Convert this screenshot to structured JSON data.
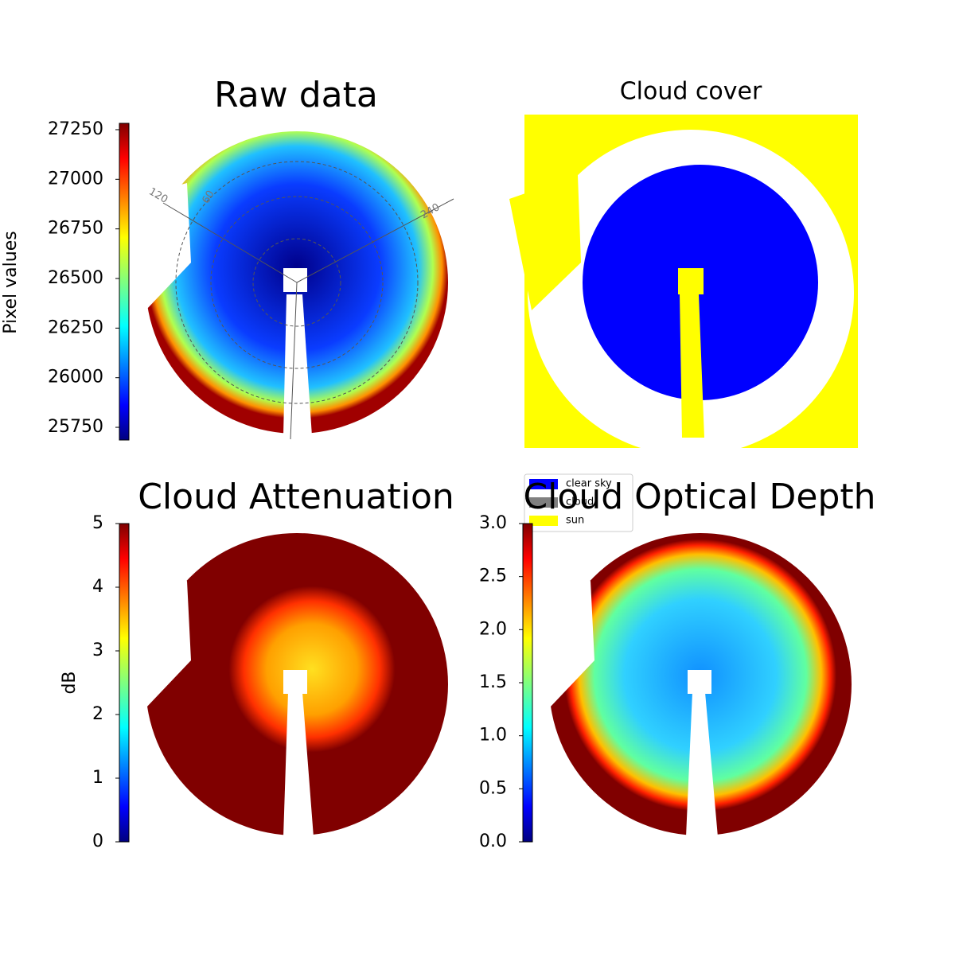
{
  "chart_data": [
    {
      "type": "image",
      "title": "Raw data",
      "colorbar": {
        "label": "Pixel values",
        "ylim": [
          25686,
          27282
        ],
        "yticks": [
          25750,
          26000,
          26250,
          26500,
          26750,
          27000,
          27250
        ]
      },
      "annotations": [
        "120",
        "60",
        "240"
      ]
    },
    {
      "type": "image",
      "title": "Cloud cover",
      "series": [
        {
          "name": "clear sky",
          "color": "#0000ff"
        },
        {
          "name": "cloud",
          "color": "#808080"
        },
        {
          "name": "sun",
          "color": "#ffff00"
        }
      ]
    },
    {
      "type": "image",
      "title": "Cloud Attenuation",
      "colorbar": {
        "label": "dB",
        "ylim": [
          0,
          5
        ],
        "yticks": [
          0,
          1,
          2,
          3,
          4,
          5
        ]
      }
    },
    {
      "type": "image",
      "title": "Cloud Optical Depth",
      "colorbar": {
        "ylim": [
          0,
          3
        ],
        "yticks": [
          {
            "value": 0,
            "label": "0.0"
          },
          0.5,
          {
            "value": 1,
            "label": "1.0"
          },
          1.5,
          {
            "value": 2,
            "label": "2.0"
          },
          2.5,
          {
            "value": 3,
            "label": "3.0"
          }
        ]
      }
    }
  ]
}
